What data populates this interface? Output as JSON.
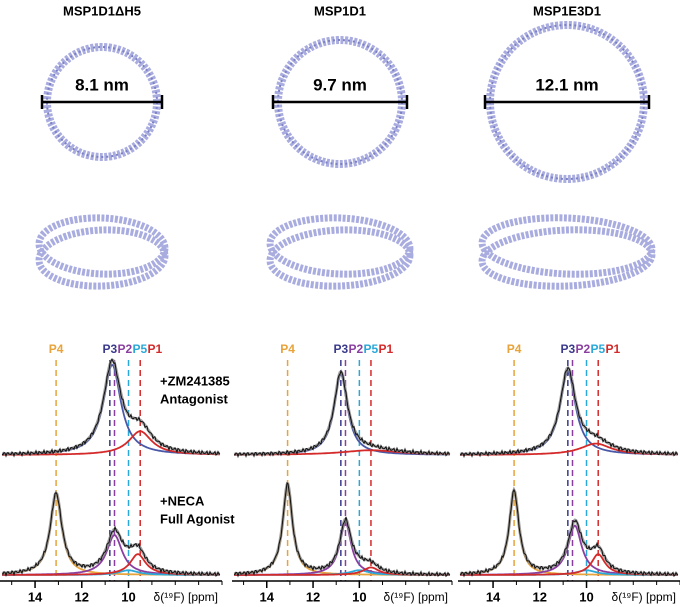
{
  "panels": [
    {
      "label": "MSP1D1ΔH5",
      "diameter": "8.1 nm",
      "spectra": [
        [
          {
            "color": "#4a58a8",
            "ppm": 10.7,
            "height": 0.95,
            "width": 0.45
          },
          {
            "color": "#d42a2a",
            "ppm": 9.5,
            "height": 0.25,
            "width": 0.6
          }
        ],
        [
          {
            "color": "#e8a33a",
            "ppm": 13.1,
            "height": 0.85,
            "width": 0.3
          },
          {
            "color": "#8a3fa0",
            "ppm": 10.6,
            "height": 0.42,
            "width": 0.4
          },
          {
            "color": "#2aa8d8",
            "ppm": 10.0,
            "height": 0.05,
            "width": 0.5
          },
          {
            "color": "#d42a2a",
            "ppm": 9.6,
            "height": 0.22,
            "width": 0.4
          }
        ]
      ]
    },
    {
      "label": "MSP1D1",
      "diameter": "9.7 nm",
      "spectra": [
        [
          {
            "color": "#4a58a8",
            "ppm": 10.8,
            "height": 0.85,
            "width": 0.35
          },
          {
            "color": "#d42a2a",
            "ppm": 9.5,
            "height": 0.05,
            "width": 1.5
          }
        ],
        [
          {
            "color": "#e8a33a",
            "ppm": 13.1,
            "height": 0.95,
            "width": 0.25
          },
          {
            "color": "#8a3fa0",
            "ppm": 10.6,
            "height": 0.55,
            "width": 0.3
          },
          {
            "color": "#2aa8d8",
            "ppm": 10.0,
            "height": 0.05,
            "width": 0.5
          },
          {
            "color": "#d42a2a",
            "ppm": 9.5,
            "height": 0.08,
            "width": 0.4
          }
        ]
      ]
    },
    {
      "label": "MSP1E3D1",
      "diameter": "12.1 nm",
      "spectra": [
        [
          {
            "color": "#4a58a8",
            "ppm": 10.8,
            "height": 0.88,
            "width": 0.4
          },
          {
            "color": "#d42a2a",
            "ppm": 9.6,
            "height": 0.12,
            "width": 0.8
          }
        ],
        [
          {
            "color": "#e8a33a",
            "ppm": 13.1,
            "height": 0.88,
            "width": 0.25
          },
          {
            "color": "#8a3fa0",
            "ppm": 10.5,
            "height": 0.52,
            "width": 0.35
          },
          {
            "color": "#2aa8d8",
            "ppm": 10.0,
            "height": 0.05,
            "width": 0.5
          },
          {
            "color": "#d42a2a",
            "ppm": 9.5,
            "height": 0.22,
            "width": 0.35
          }
        ]
      ]
    }
  ],
  "conditions": [
    {
      "label": "+ZM241385",
      "sublabel": "Antagonist"
    },
    {
      "label": "+NECA",
      "sublabel": "Full Agonist"
    }
  ],
  "peaks": [
    {
      "name": "P4",
      "color": "#e8a33a",
      "ppm": 13.1
    },
    {
      "name": "P3",
      "color": "#3a3a8c",
      "ppm": 10.8
    },
    {
      "name": "P2",
      "color": "#8a3fa0",
      "ppm": 10.6
    },
    {
      "name": "P5",
      "color": "#2aa8d8",
      "ppm": 10.0
    },
    {
      "name": "P1",
      "color": "#d42a2a",
      "ppm": 9.5
    }
  ],
  "axis": {
    "label": "δ(¹⁹F) [ppm]",
    "xlim": [
      15.5,
      6
    ],
    "ticks": [
      14,
      12,
      10
    ]
  }
}
